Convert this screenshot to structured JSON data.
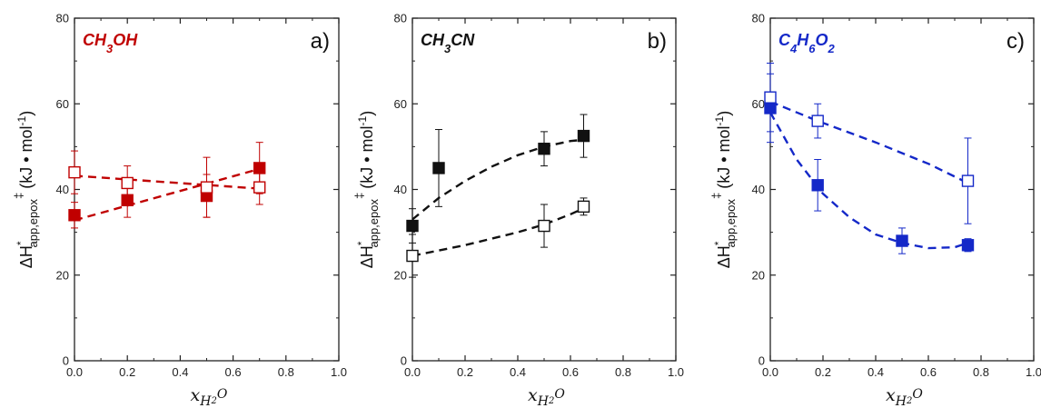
{
  "chart_data": [
    {
      "type": "scatter",
      "panel_letter": "a)",
      "compound_base": [
        "CH",
        "3",
        "OH"
      ],
      "compound_color": "#c00000",
      "series_color": "#c00000",
      "xlabel": "x_H2O",
      "xlabel_main": "x",
      "xlabel_sub": "H",
      "xlabel_subsub": "2",
      "xlabel_subtail": "O",
      "ylabel_parts": {
        "delta": "ΔH",
        "star": "*",
        "sub": "app,epox",
        "dagger": "‡",
        "unit": "(kJ • mol",
        "exp": "-1",
        "close": ")"
      },
      "xlim": [
        0,
        1.0
      ],
      "ylim": [
        0,
        80
      ],
      "xticks": [
        "0.0",
        "0.2",
        "0.4",
        "0.6",
        "0.8",
        "1.0"
      ],
      "yticks": [
        "0",
        "20",
        "40",
        "60",
        "80"
      ],
      "grid": false,
      "series": [
        {
          "marker": "filled-square",
          "points": [
            {
              "x": 0.0,
              "y": 34,
              "err": 3
            },
            {
              "x": 0.2,
              "y": 37.5,
              "err": 4
            },
            {
              "x": 0.5,
              "y": 38.5,
              "err": 5
            },
            {
              "x": 0.7,
              "y": 45,
              "err": 6
            }
          ],
          "fit": [
            [
              0.0,
              32.8
            ],
            [
              0.7,
              44.8
            ]
          ]
        },
        {
          "marker": "open-square",
          "points": [
            {
              "x": 0.0,
              "y": 44,
              "err": 5
            },
            {
              "x": 0.2,
              "y": 41.5,
              "err": 4
            },
            {
              "x": 0.5,
              "y": 40.5,
              "err": 7
            },
            {
              "x": 0.7,
              "y": 40.5,
              "err": 4
            }
          ],
          "fit": [
            [
              0.0,
              43.2
            ],
            [
              0.7,
              40.2
            ]
          ]
        }
      ]
    },
    {
      "type": "scatter",
      "panel_letter": "b)",
      "compound_base": [
        "CH",
        "3",
        "CN"
      ],
      "compound_color": "#111111",
      "series_color": "#111111",
      "xlabel": "x_H2O",
      "xlabel_main": "x",
      "xlabel_sub": "H",
      "xlabel_subsub": "2",
      "xlabel_subtail": "O",
      "ylabel_parts": {
        "delta": "ΔH",
        "star": "*",
        "sub": "app,epox",
        "dagger": "‡",
        "unit": "(kJ • mol",
        "exp": "-1",
        "close": ")"
      },
      "xlim": [
        0,
        1.0
      ],
      "ylim": [
        0,
        80
      ],
      "xticks": [
        "0.0",
        "0.2",
        "0.4",
        "0.6",
        "0.8",
        "1.0"
      ],
      "yticks": [
        "0",
        "20",
        "40",
        "60",
        "80"
      ],
      "grid": false,
      "series": [
        {
          "marker": "filled-square",
          "points": [
            {
              "x": 0.0,
              "y": 31.5,
              "err": 4
            },
            {
              "x": 0.1,
              "y": 45,
              "err": 9
            },
            {
              "x": 0.5,
              "y": 49.5,
              "err": 4
            },
            {
              "x": 0.65,
              "y": 52.5,
              "err": 5
            }
          ],
          "fit": [
            [
              0.0,
              33
            ],
            [
              0.1,
              38
            ],
            [
              0.2,
              42
            ],
            [
              0.3,
              45.3
            ],
            [
              0.4,
              48
            ],
            [
              0.5,
              50
            ],
            [
              0.6,
              51.3
            ],
            [
              0.65,
              51.6
            ]
          ]
        },
        {
          "marker": "open-square",
          "points": [
            {
              "x": 0.0,
              "y": 24.5,
              "err": 5
            },
            {
              "x": 0.5,
              "y": 31.5,
              "err": 5
            },
            {
              "x": 0.65,
              "y": 36,
              "err": 2
            }
          ],
          "fit": [
            [
              0.0,
              24.5
            ],
            [
              0.2,
              27
            ],
            [
              0.4,
              30
            ],
            [
              0.5,
              31.8
            ],
            [
              0.6,
              34.2
            ],
            [
              0.65,
              35.6
            ]
          ]
        }
      ]
    },
    {
      "type": "scatter",
      "panel_letter": "c)",
      "compound_base": [
        "C",
        "4",
        "H",
        "6",
        "O",
        "2"
      ],
      "compound_color": "#1428c8",
      "series_color": "#1428c8",
      "xlabel": "x_H2O",
      "xlabel_main": "x",
      "xlabel_sub": "H",
      "xlabel_subsub": "2",
      "xlabel_subtail": "O",
      "ylabel_parts": {
        "delta": "ΔH",
        "star": "*",
        "sub": "app,epox",
        "dagger": "‡",
        "unit": "(kJ • mol",
        "exp": "-1",
        "close": ")"
      },
      "xlim": [
        0,
        1.0
      ],
      "ylim": [
        0,
        80
      ],
      "xticks": [
        "0.0",
        "0.2",
        "0.4",
        "0.6",
        "0.8",
        "1.0"
      ],
      "yticks": [
        "0",
        "20",
        "40",
        "60",
        "80"
      ],
      "grid": false,
      "series": [
        {
          "marker": "filled-square",
          "points": [
            {
              "x": 0.0,
              "y": 59,
              "err": 8
            },
            {
              "x": 0.18,
              "y": 41,
              "err": 6
            },
            {
              "x": 0.5,
              "y": 28,
              "err": 3
            },
            {
              "x": 0.75,
              "y": 27,
              "err": 1.5
            }
          ],
          "fit": [
            [
              0.0,
              58
            ],
            [
              0.1,
              47
            ],
            [
              0.2,
              39
            ],
            [
              0.3,
              33.5
            ],
            [
              0.4,
              29.5
            ],
            [
              0.5,
              27.5
            ],
            [
              0.6,
              26.3
            ],
            [
              0.7,
              26.5
            ],
            [
              0.75,
              27.5
            ]
          ]
        },
        {
          "marker": "open-square",
          "points": [
            {
              "x": 0.0,
              "y": 61.5,
              "err": 8
            },
            {
              "x": 0.18,
              "y": 56,
              "err": 4
            },
            {
              "x": 0.75,
              "y": 42,
              "err": 10
            }
          ],
          "fit": [
            [
              0.0,
              60.5
            ],
            [
              0.18,
              56
            ],
            [
              0.4,
              51
            ],
            [
              0.6,
              46
            ],
            [
              0.75,
              41.5
            ]
          ]
        }
      ]
    }
  ]
}
